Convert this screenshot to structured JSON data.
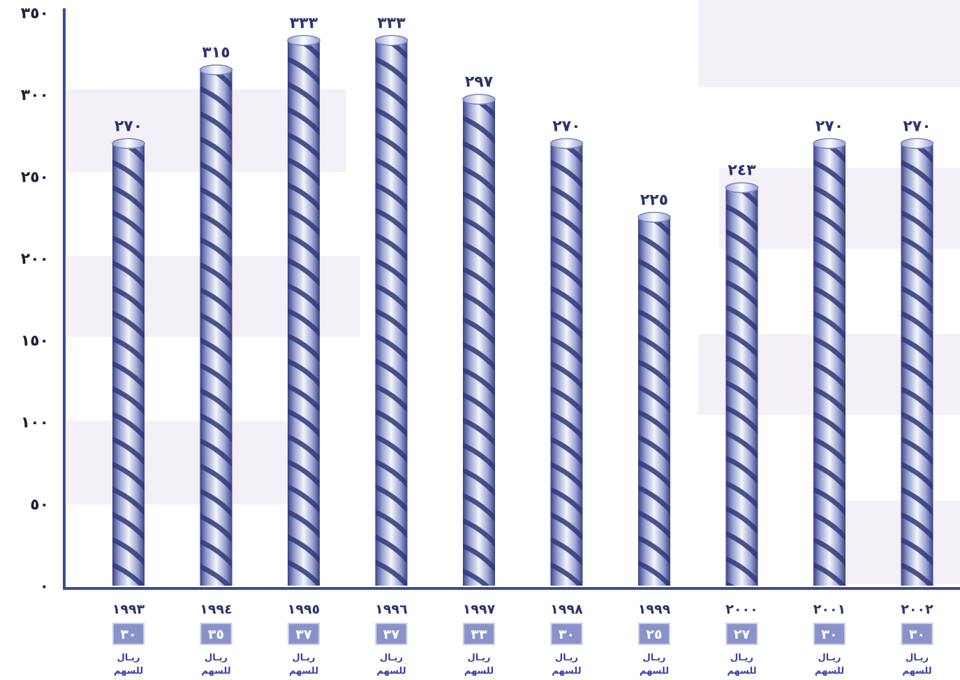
{
  "chart_data": {
    "type": "bar",
    "categories": [
      "١٩٩٣",
      "١٩٩٤",
      "١٩٩٥",
      "١٩٩٦",
      "١٩٩٧",
      "١٩٩٨",
      "١٩٩٩",
      "٢٠٠٠",
      "٢٠٠١",
      "٢٠٠٢"
    ],
    "values": [
      270,
      315,
      333,
      333,
      297,
      270,
      225,
      243,
      270,
      270
    ],
    "value_labels": [
      "٢٧٠",
      "٣١٥",
      "٣٣٣",
      "٣٣٣",
      "٢٩٧",
      "٢٧٠",
      "٢٢٥",
      "٢٤٣",
      "٢٧٠",
      "٢٧٠"
    ],
    "dividends": [
      30,
      35,
      37,
      37,
      33,
      30,
      25,
      27,
      30,
      30
    ],
    "dividend_labels": [
      "٣٠",
      "٣٥",
      "٣٧",
      "٣٧",
      "٣٣",
      "٣٠",
      "٢٥",
      "٢٧",
      "٣٠",
      "٣٠"
    ],
    "dividend_unit_line1": "ريـال",
    "dividend_unit_line2": "للسهم",
    "yticks": [
      0,
      50,
      100,
      150,
      200,
      250,
      300,
      350
    ],
    "ytick_labels": [
      "٠",
      "٥٠",
      "١٠٠",
      "١٥٠",
      "٢٠٠",
      "٢٥٠",
      "٣٠٠",
      "٣٥٠"
    ],
    "ylim": [
      0,
      350
    ],
    "title": "",
    "xlabel": "",
    "ylabel": "",
    "grid": false,
    "colors": {
      "axis": "#3b4a9a",
      "bar_light": "#f4f5fb",
      "bar_mid": "#aab0d8",
      "bar_dark": "#3a4488",
      "helix": "#2f3878",
      "band": "#eeeaf4",
      "dividend_box": "#8a93c9"
    }
  }
}
